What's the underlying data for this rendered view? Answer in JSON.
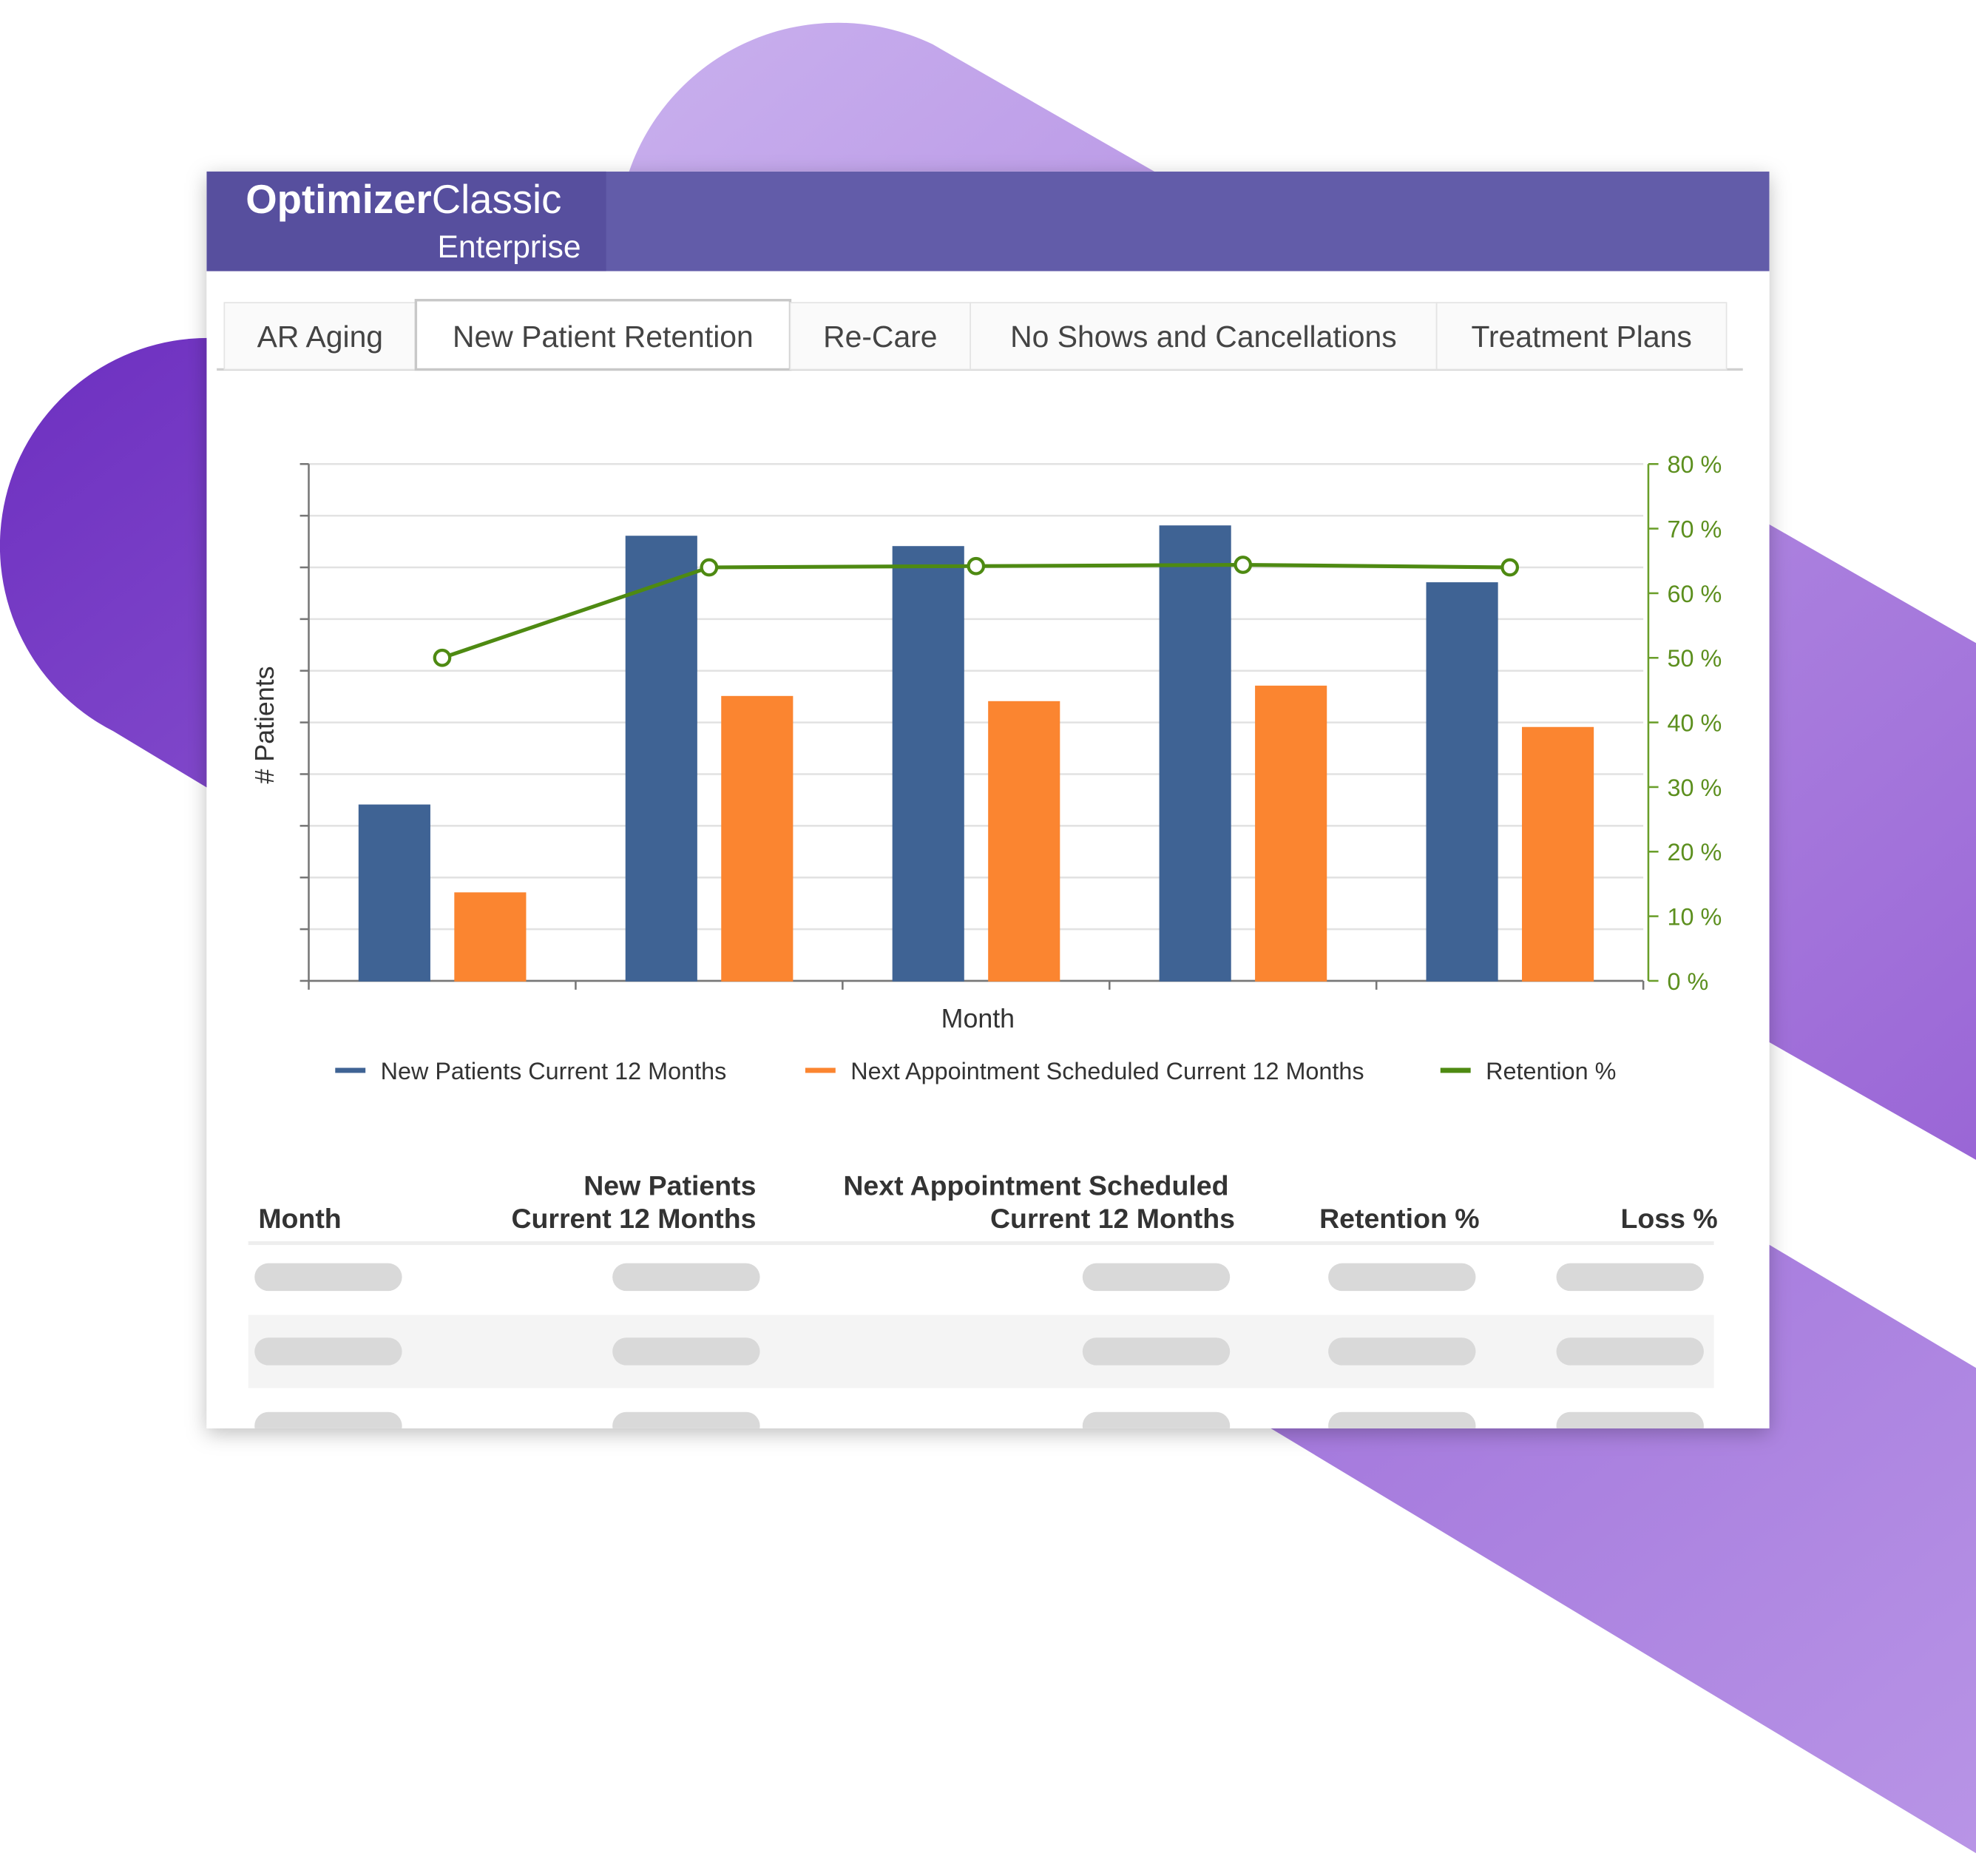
{
  "header": {
    "brand_bold": "Optimizer",
    "brand": "Classic",
    "subtitle": "Enterprise"
  },
  "tabs": [
    "AR Aging",
    "New Patient Retention",
    "Re-Care",
    "No Shows and Cancellations",
    "Treatment Plans"
  ],
  "active_tab": 1,
  "chart_data": {
    "type": "bar",
    "y_label": "# Patients",
    "x_label": "Month",
    "categories": [
      null,
      null,
      null,
      null,
      null
    ],
    "ylim": [
      0,
      10
    ],
    "yticks": [
      0,
      1,
      2,
      3,
      4,
      5,
      6,
      7,
      8,
      9,
      10
    ],
    "y2lim": [
      0,
      80
    ],
    "y2ticks": [
      {
        "value": 0,
        "label": "0 %"
      },
      {
        "value": 10,
        "label": "10 %"
      },
      {
        "value": 20,
        "label": "20 %"
      },
      {
        "value": 30,
        "label": "30 %"
      },
      {
        "value": 40,
        "label": "40 %"
      },
      {
        "value": 50,
        "label": "50 %"
      },
      {
        "value": 60,
        "label": "60 %"
      },
      {
        "value": 70,
        "label": "70 %"
      },
      {
        "value": 80,
        "label": "80 %"
      }
    ],
    "grid": true,
    "series": [
      {
        "name": "New Patients Current 12 Months",
        "color": "#3f6394",
        "values": [
          3.4,
          8.6,
          8.4,
          8.8,
          7.7
        ]
      },
      {
        "name": "Next Appointment Scheduled Current 12 Months",
        "color": "#fb8530",
        "values": [
          1.7,
          5.5,
          5.4,
          5.7,
          4.9
        ]
      },
      {
        "name": "Retention %",
        "color": "#4e8a12",
        "type": "line",
        "axis": "y2",
        "values": [
          50,
          64,
          64.2,
          64.4,
          64
        ]
      }
    ]
  },
  "table": {
    "headers": [
      [
        "Month"
      ],
      [
        "New Patients",
        "Current 12 Months"
      ],
      [
        "Next Appointment Scheduled",
        "Current 12 Months"
      ],
      [
        "Retention %"
      ],
      [
        "Loss %"
      ]
    ]
  }
}
